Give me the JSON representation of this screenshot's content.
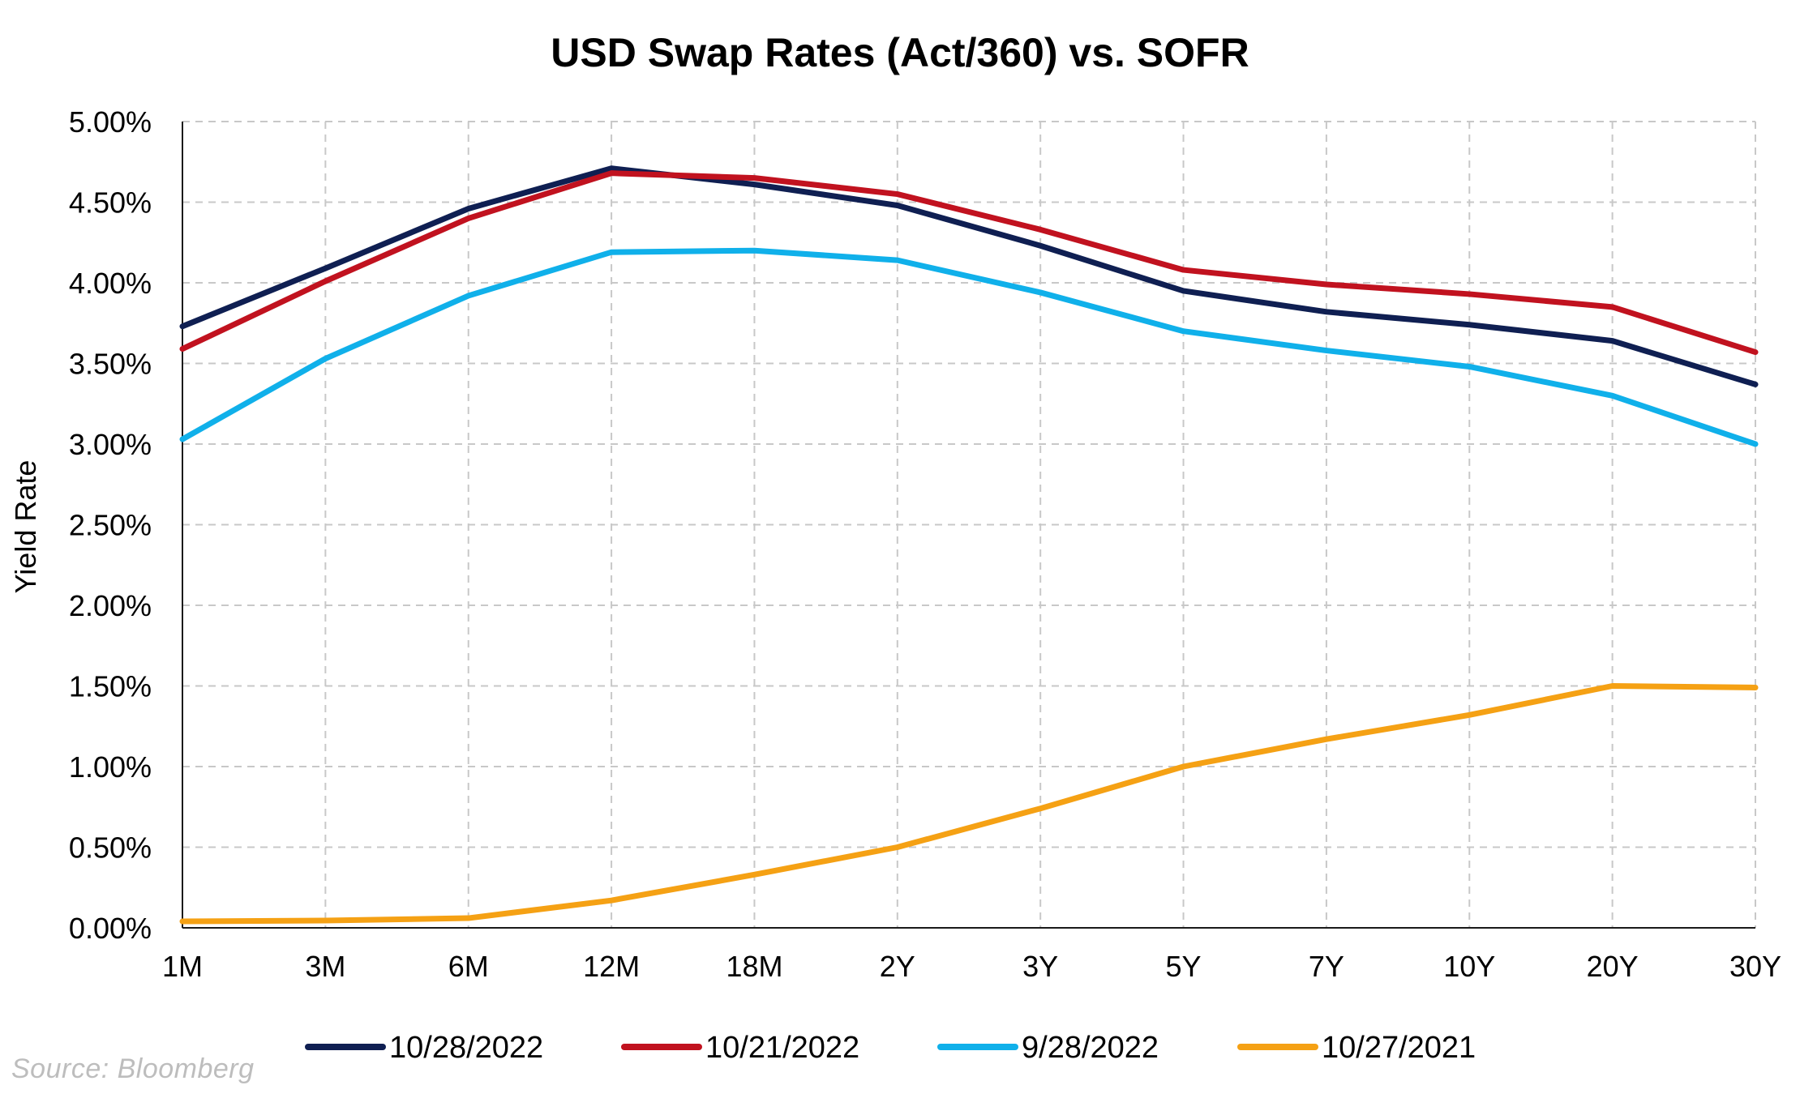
{
  "chart_data": {
    "type": "line",
    "title": "USD Swap Rates (Act/360) vs. SOFR",
    "xlabel": "",
    "ylabel": "Yield Rate",
    "categories": [
      "1M",
      "3M",
      "6M",
      "12M",
      "18M",
      "2Y",
      "3Y",
      "5Y",
      "7Y",
      "10Y",
      "20Y",
      "30Y"
    ],
    "ylim": [
      0,
      5
    ],
    "yticks": [
      0,
      0.5,
      1,
      1.5,
      2,
      2.5,
      3,
      3.5,
      4,
      4.5,
      5
    ],
    "ytick_labels": [
      "0.00%",
      "0.50%",
      "1.00%",
      "1.50%",
      "2.00%",
      "2.50%",
      "3.00%",
      "3.50%",
      "4.00%",
      "4.50%",
      "5.00%"
    ],
    "grid": true,
    "legend_position": "bottom",
    "series": [
      {
        "name": "10/28/2022",
        "color": "#0f1f52",
        "values": [
          3.73,
          4.09,
          4.46,
          4.71,
          4.61,
          4.48,
          4.23,
          3.95,
          3.82,
          3.74,
          3.64,
          3.37
        ]
      },
      {
        "name": "10/21/2022",
        "color": "#c1121f",
        "values": [
          3.59,
          4.01,
          4.4,
          4.68,
          4.65,
          4.55,
          4.33,
          4.08,
          3.99,
          3.93,
          3.85,
          3.57
        ]
      },
      {
        "name": "9/28/2022",
        "color": "#10b0ea",
        "values": [
          3.03,
          3.53,
          3.92,
          4.19,
          4.2,
          4.14,
          3.94,
          3.7,
          3.58,
          3.48,
          3.3,
          3.0
        ]
      },
      {
        "name": "10/27/2021",
        "color": "#f5a114",
        "values": [
          0.04,
          0.045,
          0.06,
          0.17,
          0.33,
          0.5,
          0.74,
          1.0,
          1.17,
          1.32,
          1.5,
          1.49
        ]
      }
    ]
  },
  "source_note": "Source: Bloomberg"
}
